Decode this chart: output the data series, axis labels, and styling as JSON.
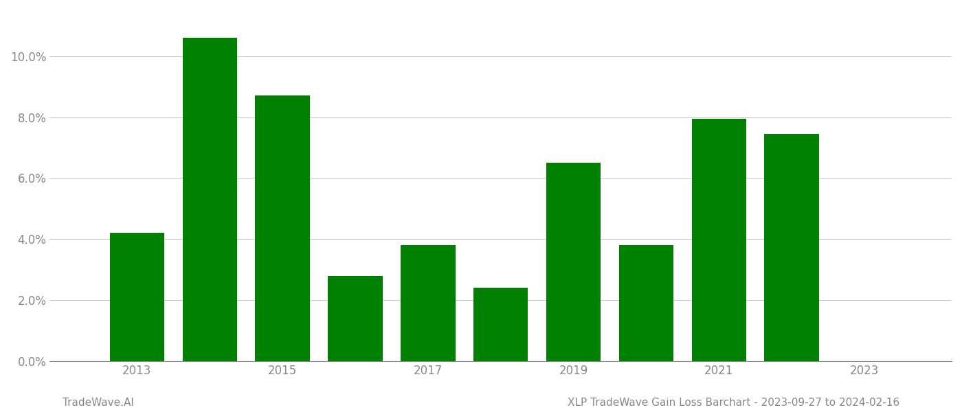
{
  "years": [
    2013,
    2014,
    2015,
    2016,
    2017,
    2018,
    2019,
    2020,
    2021,
    2022
  ],
  "values": [
    0.042,
    0.106,
    0.087,
    0.028,
    0.038,
    0.024,
    0.065,
    0.038,
    0.0795,
    0.0745
  ],
  "bar_color": "#008000",
  "background_color": "#ffffff",
  "grid_color": "#cccccc",
  "axis_color": "#888888",
  "tick_label_color": "#888888",
  "ylim": [
    0,
    0.115
  ],
  "yticks": [
    0.0,
    0.02,
    0.04,
    0.06,
    0.08,
    0.1
  ],
  "xtick_positions": [
    2013,
    2015,
    2017,
    2019,
    2021,
    2023
  ],
  "xlim_left": 2011.8,
  "xlim_right": 2024.2,
  "bar_width": 0.75,
  "footer_left": "TradeWave.AI",
  "footer_right": "XLP TradeWave Gain Loss Barchart - 2023-09-27 to 2024-02-16",
  "footer_color": "#888888",
  "footer_fontsize": 11
}
